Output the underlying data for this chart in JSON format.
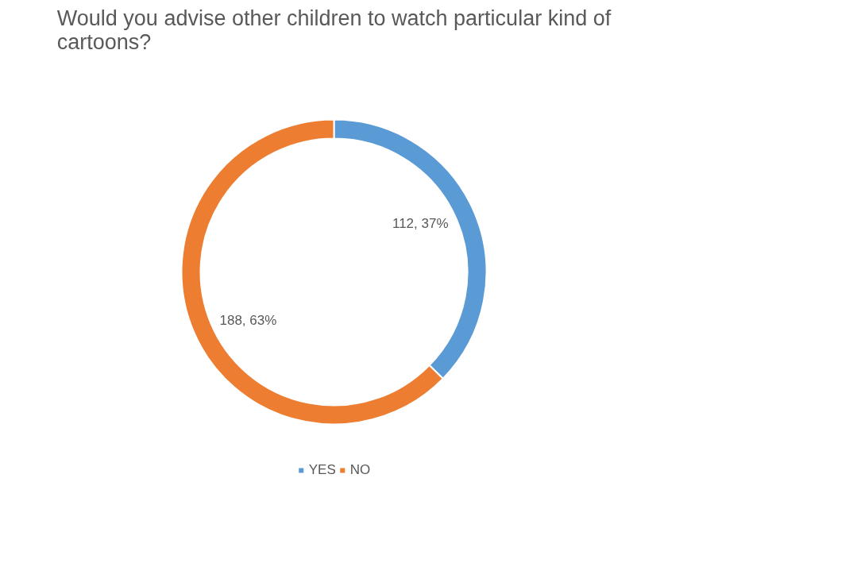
{
  "chart_data": {
    "type": "donut",
    "title": "Would you advise other children to watch particular kind of cartoons?",
    "categories": [
      "YES",
      "NO"
    ],
    "values": [
      112,
      188
    ],
    "colors": [
      "#5b9bd5",
      "#ed7d31"
    ],
    "value_labels": [
      "112, 37%",
      "188, 63%"
    ],
    "legend": "bottom"
  }
}
